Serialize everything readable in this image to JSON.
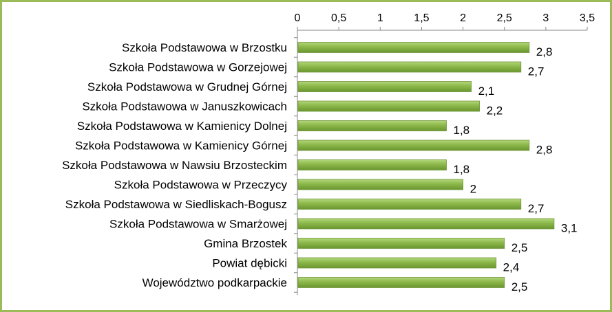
{
  "chart_data": {
    "type": "bar",
    "orientation": "horizontal",
    "title": "",
    "xlabel": "",
    "ylabel": "",
    "xlim": [
      0,
      3.5
    ],
    "ticks": [
      "0",
      "0,5",
      "1",
      "1,5",
      "2",
      "2,5",
      "3",
      "3,5"
    ],
    "tick_values": [
      0,
      0.5,
      1,
      1.5,
      2,
      2.5,
      3,
      3.5
    ],
    "axis_position": "top",
    "grid": false,
    "legend": "none",
    "bar_color": "#8cb84a",
    "categories": [
      "Szkoła Podstawowa w Brzostku",
      "Szkoła Podstawowa w Gorzejowej",
      "Szkoła Podstawowa w Grudnej Górnej",
      "Szkoła Podstawowa w Januszkowicach",
      "Szkoła Podstawowa w Kamienicy Dolnej",
      "Szkoła Podstawowa w Kamienicy Górnej",
      "Szkoła Podstawowa w Nawsiu Brzosteckim",
      "Szkoła Podstawowa w Przeczycy",
      "Szkoła Podstawowa w Siedliskach-Bogusz",
      "Szkoła Podstawowa w Smarżowej",
      "Gmina Brzostek",
      "Powiat dębicki",
      "Województwo podkarpackie"
    ],
    "values": [
      2.8,
      2.7,
      2.1,
      2.2,
      1.8,
      2.8,
      1.8,
      2,
      2.7,
      3.1,
      2.5,
      2.4,
      2.5
    ],
    "value_labels": [
      "2,8",
      "2,7",
      "2,1",
      "2,2",
      "1,8",
      "2,8",
      "1,8",
      "2",
      "2,7",
      "3,1",
      "2,5",
      "2,4",
      "2,5"
    ]
  }
}
